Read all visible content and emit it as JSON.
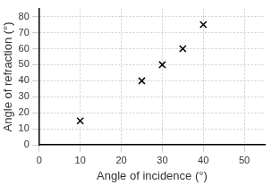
{
  "chart_data": {
    "type": "scatter",
    "x_label": "Angle of incidence (°)",
    "y_label": "Angle of refraction (°)",
    "x": [
      10,
      25,
      30,
      35,
      40
    ],
    "values": [
      15,
      40,
      50,
      60,
      75
    ],
    "color": "#000000",
    "marker": "x",
    "xlim": [
      0,
      55
    ],
    "xticks": [
      0,
      10,
      20,
      30,
      40,
      50
    ],
    "ylim": [
      0,
      85
    ],
    "yticks": [
      0,
      10,
      20,
      30,
      40,
      50,
      60,
      70,
      80
    ],
    "grid": true
  }
}
